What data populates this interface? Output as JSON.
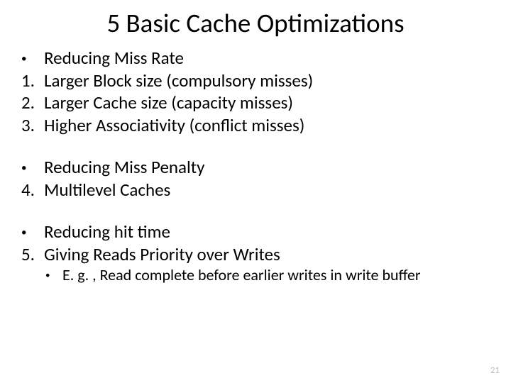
{
  "slide": {
    "title": "5 Basic Cache Optimizations",
    "section1": {
      "heading": "Reducing Miss Rate",
      "items": [
        {
          "num": "1.",
          "text": "Larger Block size (compulsory misses)"
        },
        {
          "num": "2.",
          "text": "Larger Cache size (capacity misses)"
        },
        {
          "num": "3.",
          "text": "Higher Associativity (conflict misses)"
        }
      ]
    },
    "section2": {
      "heading": "Reducing Miss Penalty",
      "items": [
        {
          "num": "4.",
          "text": "Multilevel Caches"
        }
      ]
    },
    "section3": {
      "heading": "Reducing hit time",
      "items": [
        {
          "num": "5.",
          "text": "Giving Reads Priority over Writes"
        }
      ],
      "sub": "E. g. , Read complete before earlier writes in write buffer"
    },
    "pageNumber": "21"
  },
  "style": {
    "title_fontsize": 37,
    "body_fontsize": 25,
    "sub_fontsize": 22,
    "pagenum_fontsize": 13,
    "text_color": "#000000",
    "background_color": "#ffffff",
    "pagenum_color": "#bfbfbf",
    "font_family": "Calibri"
  }
}
